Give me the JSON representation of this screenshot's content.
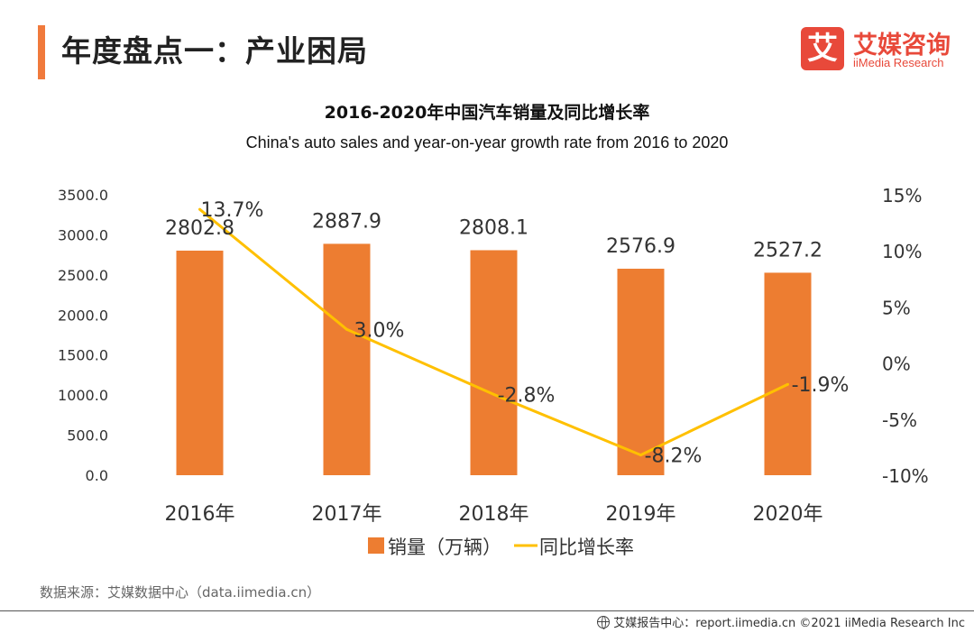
{
  "header": {
    "title": "年度盘点一：产业困局",
    "logo_cn": "艾媒咨询",
    "logo_en": "iiMedia Research",
    "logo_mark": "艾"
  },
  "colors": {
    "accent": "#f07a3c",
    "bar": "#ed7d31",
    "line": "#ffc000",
    "brand": "#e8493a"
  },
  "chart_data": {
    "type": "bar",
    "title": "2016-2020年中国汽车销量及同比增长率",
    "subtitle": "China's auto sales and year-on-year growth rate  from 2016 to 2020",
    "categories": [
      "2016年",
      "2017年",
      "2018年",
      "2019年",
      "2020年"
    ],
    "series": [
      {
        "name": "销量（万辆）",
        "type": "bar",
        "axis": "left",
        "values": [
          2802.8,
          2887.9,
          2808.1,
          2576.9,
          2527.2
        ],
        "labels": [
          "2802.8",
          "2887.9",
          "2808.1",
          "2576.9",
          "2527.2"
        ]
      },
      {
        "name": "同比增长率",
        "type": "line",
        "axis": "right",
        "values": [
          13.7,
          3.0,
          -2.8,
          -8.2,
          -1.9
        ],
        "labels": [
          "13.7%",
          "3.0%",
          "-2.8%",
          "-8.2%",
          "-1.9%"
        ]
      }
    ],
    "left_axis": {
      "ylim": [
        0,
        3500
      ],
      "ticks": [
        "0.0",
        "500.0",
        "1000.0",
        "1500.0",
        "2000.0",
        "2500.0",
        "3000.0",
        "3500.0"
      ]
    },
    "right_axis": {
      "ylim": [
        -10,
        15
      ],
      "ticks": [
        "-10%",
        "-5%",
        "0%",
        "5%",
        "10%",
        "15%"
      ]
    },
    "legend_position": "bottom",
    "grid": false
  },
  "footer": {
    "source": "数据来源：艾媒数据中心（data.iimedia.cn）",
    "copyright": "艾媒报告中心：report.iimedia.cn  ©2021  iiMedia Research  Inc"
  }
}
